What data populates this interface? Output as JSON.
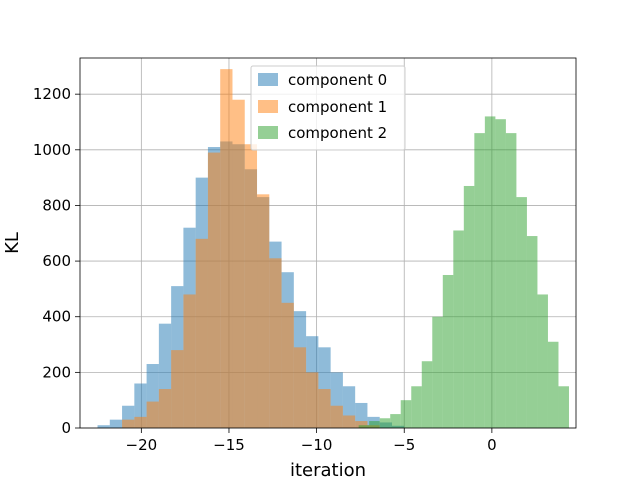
{
  "chart_data": {
    "type": "histogram",
    "title": "",
    "xlabel": "iteration",
    "ylabel": "KL",
    "xlim": [
      -23.5,
      4.8
    ],
    "ylim": [
      0,
      1330
    ],
    "x_ticks": [
      -20,
      -15,
      -10,
      -5,
      0
    ],
    "x_tick_labels": [
      "−20",
      "−15",
      "−10",
      "−5",
      "0"
    ],
    "y_ticks": [
      0,
      200,
      400,
      600,
      800,
      1000,
      1200
    ],
    "y_tick_labels": [
      "0",
      "200",
      "400",
      "600",
      "800",
      "1000",
      "1200"
    ],
    "grid": true,
    "legend_position": "upper center",
    "series": [
      {
        "name": "component 0",
        "color": "#1f77b4",
        "bins": [
          {
            "x0": -22.5,
            "x1": -21.8,
            "count": 10
          },
          {
            "x0": -21.8,
            "x1": -21.1,
            "count": 30
          },
          {
            "x0": -21.1,
            "x1": -20.4,
            "count": 80
          },
          {
            "x0": -20.4,
            "x1": -19.7,
            "count": 160
          },
          {
            "x0": -19.7,
            "x1": -19.0,
            "count": 230
          },
          {
            "x0": -19.0,
            "x1": -18.3,
            "count": 375
          },
          {
            "x0": -18.3,
            "x1": -17.6,
            "count": 510
          },
          {
            "x0": -17.6,
            "x1": -16.9,
            "count": 720
          },
          {
            "x0": -16.9,
            "x1": -16.2,
            "count": 900
          },
          {
            "x0": -16.2,
            "x1": -15.5,
            "count": 1010
          },
          {
            "x0": -15.5,
            "x1": -14.8,
            "count": 1030
          },
          {
            "x0": -14.8,
            "x1": -14.1,
            "count": 1020
          },
          {
            "x0": -14.1,
            "x1": -13.4,
            "count": 930
          },
          {
            "x0": -13.4,
            "x1": -12.7,
            "count": 830
          },
          {
            "x0": -12.7,
            "x1": -12.0,
            "count": 670
          },
          {
            "x0": -12.0,
            "x1": -11.3,
            "count": 560
          },
          {
            "x0": -11.3,
            "x1": -10.6,
            "count": 420
          },
          {
            "x0": -10.6,
            "x1": -9.9,
            "count": 330
          },
          {
            "x0": -9.9,
            "x1": -9.2,
            "count": 290
          },
          {
            "x0": -9.2,
            "x1": -8.5,
            "count": 200
          },
          {
            "x0": -8.5,
            "x1": -7.8,
            "count": 150
          },
          {
            "x0": -7.8,
            "x1": -7.1,
            "count": 90
          },
          {
            "x0": -7.1,
            "x1": -6.4,
            "count": 40
          },
          {
            "x0": -6.4,
            "x1": -5.7,
            "count": 20
          },
          {
            "x0": -5.7,
            "x1": -5.0,
            "count": 8
          }
        ]
      },
      {
        "name": "component 1",
        "color": "#ff7f0e",
        "bins": [
          {
            "x0": -21.1,
            "x1": -20.4,
            "count": 30
          },
          {
            "x0": -20.4,
            "x1": -19.7,
            "count": 40
          },
          {
            "x0": -19.7,
            "x1": -19.0,
            "count": 95
          },
          {
            "x0": -19.0,
            "x1": -18.3,
            "count": 140
          },
          {
            "x0": -18.3,
            "x1": -17.6,
            "count": 280
          },
          {
            "x0": -17.6,
            "x1": -16.9,
            "count": 480
          },
          {
            "x0": -16.9,
            "x1": -16.2,
            "count": 680
          },
          {
            "x0": -16.2,
            "x1": -15.5,
            "count": 990
          },
          {
            "x0": -15.5,
            "x1": -14.8,
            "count": 1290
          },
          {
            "x0": -14.8,
            "x1": -14.1,
            "count": 1180
          },
          {
            "x0": -14.1,
            "x1": -13.4,
            "count": 1020
          },
          {
            "x0": -13.4,
            "x1": -12.7,
            "count": 840
          },
          {
            "x0": -12.7,
            "x1": -12.0,
            "count": 610
          },
          {
            "x0": -12.0,
            "x1": -11.3,
            "count": 450
          },
          {
            "x0": -11.3,
            "x1": -10.6,
            "count": 290
          },
          {
            "x0": -10.6,
            "x1": -9.9,
            "count": 200
          },
          {
            "x0": -9.9,
            "x1": -9.2,
            "count": 140
          },
          {
            "x0": -9.2,
            "x1": -8.5,
            "count": 80
          },
          {
            "x0": -8.5,
            "x1": -7.8,
            "count": 45
          },
          {
            "x0": -7.8,
            "x1": -7.1,
            "count": 25
          },
          {
            "x0": -7.1,
            "x1": -6.4,
            "count": 10
          }
        ]
      },
      {
        "name": "component 2",
        "color": "#2ca02c",
        "bins": [
          {
            "x0": -7.6,
            "x1": -7.0,
            "count": 10
          },
          {
            "x0": -7.0,
            "x1": -6.4,
            "count": 25
          },
          {
            "x0": -6.4,
            "x1": -5.8,
            "count": 35
          },
          {
            "x0": -5.8,
            "x1": -5.2,
            "count": 50
          },
          {
            "x0": -5.2,
            "x1": -4.6,
            "count": 100
          },
          {
            "x0": -4.6,
            "x1": -4.0,
            "count": 150
          },
          {
            "x0": -4.0,
            "x1": -3.4,
            "count": 240
          },
          {
            "x0": -3.4,
            "x1": -2.8,
            "count": 400
          },
          {
            "x0": -2.8,
            "x1": -2.2,
            "count": 550
          },
          {
            "x0": -2.2,
            "x1": -1.6,
            "count": 710
          },
          {
            "x0": -1.6,
            "x1": -1.0,
            "count": 870
          },
          {
            "x0": -1.0,
            "x1": -0.4,
            "count": 1060
          },
          {
            "x0": -0.4,
            "x1": 0.2,
            "count": 1120
          },
          {
            "x0": 0.2,
            "x1": 0.8,
            "count": 1110
          },
          {
            "x0": 0.8,
            "x1": 1.4,
            "count": 1060
          },
          {
            "x0": 1.4,
            "x1": 2.0,
            "count": 830
          },
          {
            "x0": 2.0,
            "x1": 2.6,
            "count": 690
          },
          {
            "x0": 2.6,
            "x1": 3.2,
            "count": 480
          },
          {
            "x0": 3.2,
            "x1": 3.8,
            "count": 310
          },
          {
            "x0": 3.8,
            "x1": 4.4,
            "count": 150
          }
        ]
      }
    ]
  }
}
